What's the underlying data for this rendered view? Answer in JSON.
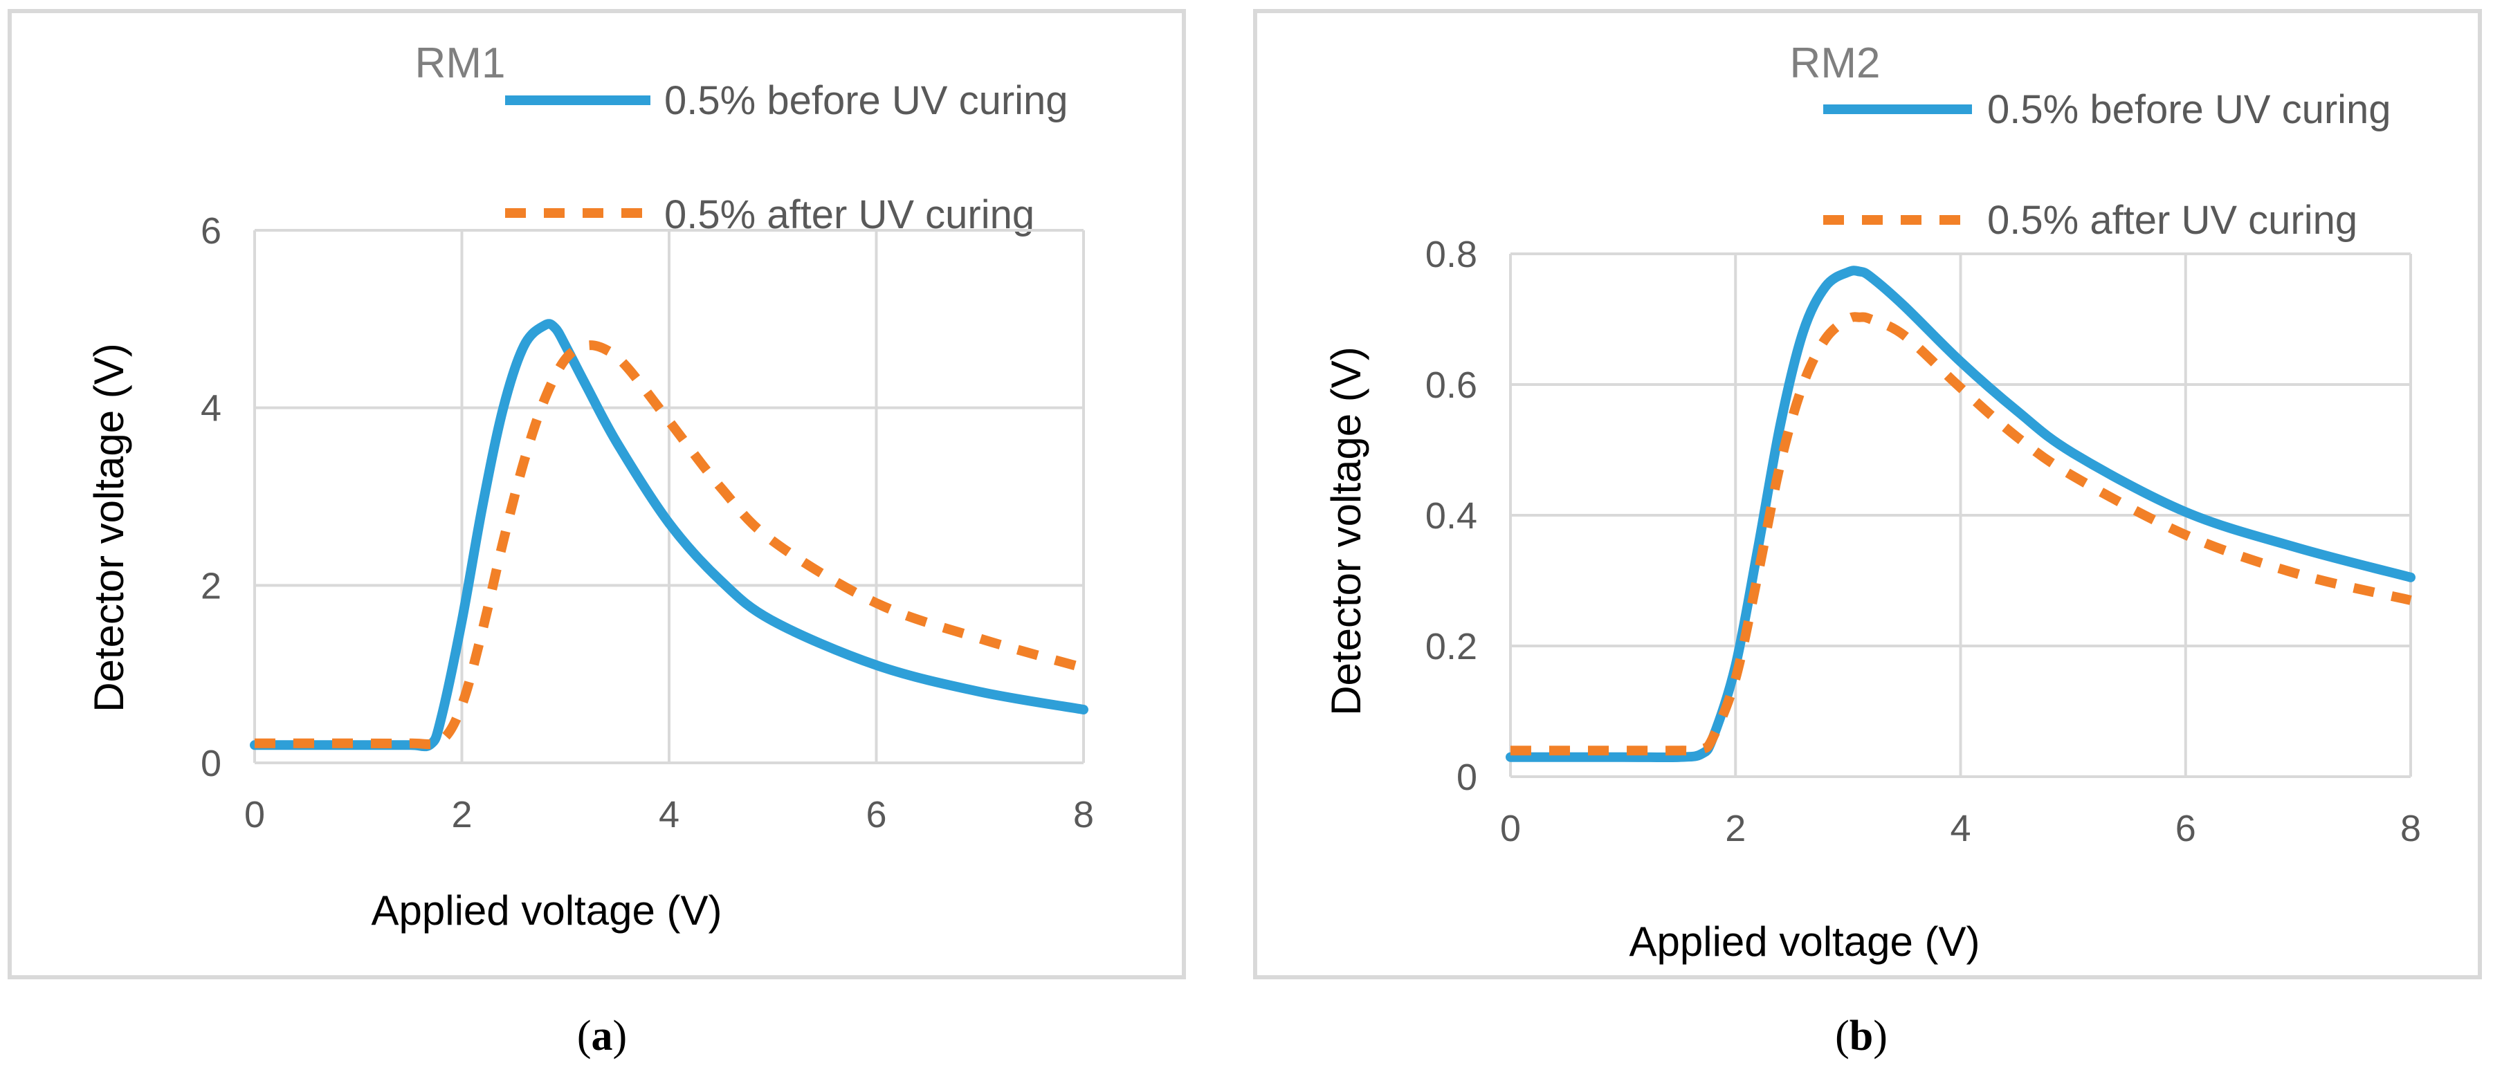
{
  "chart_data": [
    {
      "type": "line",
      "panel_label": "a",
      "title": "RM1",
      "xlabel": "Applied voltage (V)",
      "ylabel": "Detector voltage (V)",
      "xlim": [
        0,
        8
      ],
      "ylim": [
        0,
        6
      ],
      "x_ticks": [
        "0",
        "2",
        "4",
        "6",
        "8"
      ],
      "y_ticks": [
        "0",
        "2",
        "4",
        "6"
      ],
      "x_tick_values": [
        0,
        2,
        4,
        6,
        8
      ],
      "y_tick_values": [
        0,
        2,
        4,
        6
      ],
      "grid": true,
      "legend_position": "top-right",
      "series": [
        {
          "name": "0.5% before UV curing",
          "color": "#2E9FD8",
          "style": "solid",
          "x": [
            0,
            1.0,
            1.5,
            1.7,
            1.8,
            2.0,
            2.2,
            2.4,
            2.6,
            2.8,
            2.9,
            3.0,
            3.2,
            3.5,
            4.0,
            4.5,
            5.0,
            6.0,
            7.0,
            8.0
          ],
          "y": [
            0.2,
            0.2,
            0.2,
            0.21,
            0.5,
            1.6,
            2.9,
            4.0,
            4.7,
            4.93,
            4.9,
            4.7,
            4.25,
            3.6,
            2.7,
            2.05,
            1.6,
            1.1,
            0.8,
            0.6
          ]
        },
        {
          "name": "0.5% after UV curing",
          "color": "#F28027",
          "style": "dashed",
          "x": [
            0,
            1.0,
            1.5,
            1.8,
            2.0,
            2.2,
            2.4,
            2.6,
            2.8,
            3.0,
            3.2,
            3.4,
            3.6,
            4.0,
            4.5,
            5.0,
            6.0,
            7.0,
            8.0
          ],
          "y": [
            0.22,
            0.22,
            0.22,
            0.25,
            0.65,
            1.5,
            2.5,
            3.4,
            4.1,
            4.55,
            4.7,
            4.65,
            4.45,
            3.85,
            3.1,
            2.5,
            1.8,
            1.4,
            1.07
          ]
        }
      ]
    },
    {
      "type": "line",
      "panel_label": "b",
      "title": "RM2",
      "xlabel": "Applied voltage (V)",
      "ylabel": "Detector voltage (V)",
      "xlim": [
        0,
        8
      ],
      "ylim": [
        0,
        0.8
      ],
      "x_ticks": [
        "0",
        "2",
        "4",
        "6",
        "8"
      ],
      "y_ticks": [
        "0",
        "0.2",
        "0.4",
        "0.6",
        "0.8"
      ],
      "x_tick_values": [
        0,
        2,
        4,
        6,
        8
      ],
      "y_tick_values": [
        0,
        0.2,
        0.4,
        0.6,
        0.8
      ],
      "grid": true,
      "legend_position": "top-right",
      "series": [
        {
          "name": "0.5% before UV curing",
          "color": "#2E9FD8",
          "style": "solid",
          "x": [
            0,
            1.0,
            1.5,
            1.7,
            1.8,
            2.0,
            2.2,
            2.4,
            2.6,
            2.8,
            3.0,
            3.1,
            3.2,
            3.5,
            4.0,
            4.5,
            5.0,
            6.0,
            7.0,
            8.0
          ],
          "y": [
            0.03,
            0.03,
            0.03,
            0.035,
            0.06,
            0.17,
            0.35,
            0.54,
            0.68,
            0.75,
            0.772,
            0.773,
            0.765,
            0.72,
            0.635,
            0.56,
            0.495,
            0.405,
            0.35,
            0.305
          ]
        },
        {
          "name": "0.5% after UV curing",
          "color": "#F28027",
          "style": "dashed",
          "x": [
            0,
            1.0,
            1.5,
            1.7,
            1.8,
            2.0,
            2.2,
            2.4,
            2.6,
            2.8,
            3.0,
            3.1,
            3.2,
            3.5,
            4.0,
            4.5,
            5.0,
            6.0,
            7.0,
            8.0
          ],
          "y": [
            0.04,
            0.04,
            0.04,
            0.042,
            0.06,
            0.15,
            0.31,
            0.48,
            0.6,
            0.67,
            0.7,
            0.703,
            0.7,
            0.675,
            0.595,
            0.52,
            0.46,
            0.37,
            0.31,
            0.27
          ]
        }
      ]
    }
  ]
}
